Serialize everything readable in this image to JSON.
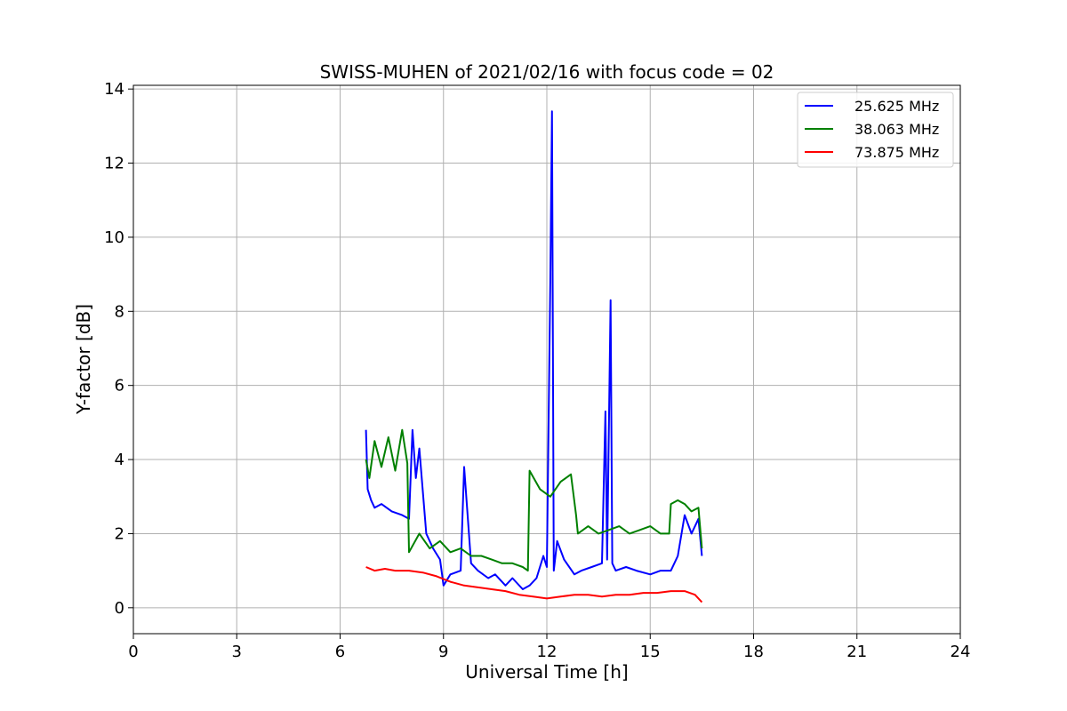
{
  "chart_data": {
    "type": "line",
    "title": "SWISS-MUHEN of 2021/02/16 with focus code = 02",
    "xlabel": "Universal Time [h]",
    "ylabel": "Y-factor [dB]",
    "xlim": [
      0,
      24
    ],
    "ylim": [
      -0.7,
      14.1
    ],
    "xticks": [
      0,
      3,
      6,
      9,
      12,
      15,
      18,
      21,
      24
    ],
    "yticks": [
      0,
      2,
      4,
      6,
      8,
      10,
      12,
      14
    ],
    "grid": true,
    "legend_position": "top-right",
    "series": [
      {
        "name": "25.625 MHz",
        "color": "#0000ff",
        "x": [
          6.75,
          6.8,
          6.9,
          7.0,
          7.2,
          7.5,
          7.8,
          8.0,
          8.1,
          8.2,
          8.3,
          8.5,
          8.7,
          8.9,
          9.0,
          9.2,
          9.5,
          9.6,
          9.8,
          10.0,
          10.3,
          10.5,
          10.8,
          11.0,
          11.3,
          11.5,
          11.7,
          11.9,
          12.0,
          12.1,
          12.15,
          12.2,
          12.3,
          12.5,
          12.8,
          13.0,
          13.3,
          13.6,
          13.7,
          13.75,
          13.85,
          13.9,
          14.0,
          14.3,
          14.6,
          15.0,
          15.3,
          15.6,
          15.8,
          16.0,
          16.2,
          16.4,
          16.5
        ],
        "y": [
          4.8,
          3.2,
          2.9,
          2.7,
          2.8,
          2.6,
          2.5,
          2.4,
          4.8,
          3.5,
          4.3,
          2.0,
          1.6,
          1.3,
          0.6,
          0.9,
          1.0,
          3.8,
          1.2,
          1.0,
          0.8,
          0.9,
          0.6,
          0.8,
          0.5,
          0.6,
          0.8,
          1.4,
          1.1,
          8.8,
          13.4,
          1.0,
          1.8,
          1.3,
          0.9,
          1.0,
          1.1,
          1.2,
          5.3,
          1.3,
          8.3,
          1.2,
          1.0,
          1.1,
          1.0,
          0.9,
          1.0,
          1.0,
          1.4,
          2.5,
          2.0,
          2.4,
          1.4
        ]
      },
      {
        "name": "38.063 MHz",
        "color": "#008000",
        "x": [
          6.75,
          6.85,
          7.0,
          7.2,
          7.4,
          7.6,
          7.8,
          7.95,
          8.0,
          8.3,
          8.6,
          8.9,
          9.2,
          9.5,
          9.8,
          10.1,
          10.4,
          10.7,
          11.0,
          11.3,
          11.45,
          11.5,
          11.8,
          12.1,
          12.4,
          12.7,
          12.85,
          12.9,
          13.2,
          13.5,
          13.8,
          14.1,
          14.4,
          14.7,
          15.0,
          15.3,
          15.55,
          15.6,
          15.8,
          16.0,
          16.2,
          16.4,
          16.5
        ],
        "y": [
          4.0,
          3.5,
          4.5,
          3.8,
          4.6,
          3.7,
          4.8,
          3.9,
          1.5,
          2.0,
          1.6,
          1.8,
          1.5,
          1.6,
          1.4,
          1.4,
          1.3,
          1.2,
          1.2,
          1.1,
          1.0,
          3.7,
          3.2,
          3.0,
          3.4,
          3.6,
          2.5,
          2.0,
          2.2,
          2.0,
          2.1,
          2.2,
          2.0,
          2.1,
          2.2,
          2.0,
          2.0,
          2.8,
          2.9,
          2.8,
          2.6,
          2.7,
          1.6
        ]
      },
      {
        "name": "73.875 MHz",
        "color": "#ff0000",
        "x": [
          6.75,
          7.0,
          7.3,
          7.6,
          8.0,
          8.4,
          8.8,
          9.2,
          9.6,
          10.0,
          10.4,
          10.8,
          11.2,
          11.6,
          12.0,
          12.4,
          12.8,
          13.2,
          13.6,
          14.0,
          14.4,
          14.8,
          15.2,
          15.6,
          16.0,
          16.3,
          16.5
        ],
        "y": [
          1.1,
          1.0,
          1.05,
          1.0,
          1.0,
          0.95,
          0.85,
          0.7,
          0.6,
          0.55,
          0.5,
          0.45,
          0.35,
          0.3,
          0.25,
          0.3,
          0.35,
          0.35,
          0.3,
          0.35,
          0.35,
          0.4,
          0.4,
          0.45,
          0.45,
          0.35,
          0.15
        ]
      }
    ]
  }
}
